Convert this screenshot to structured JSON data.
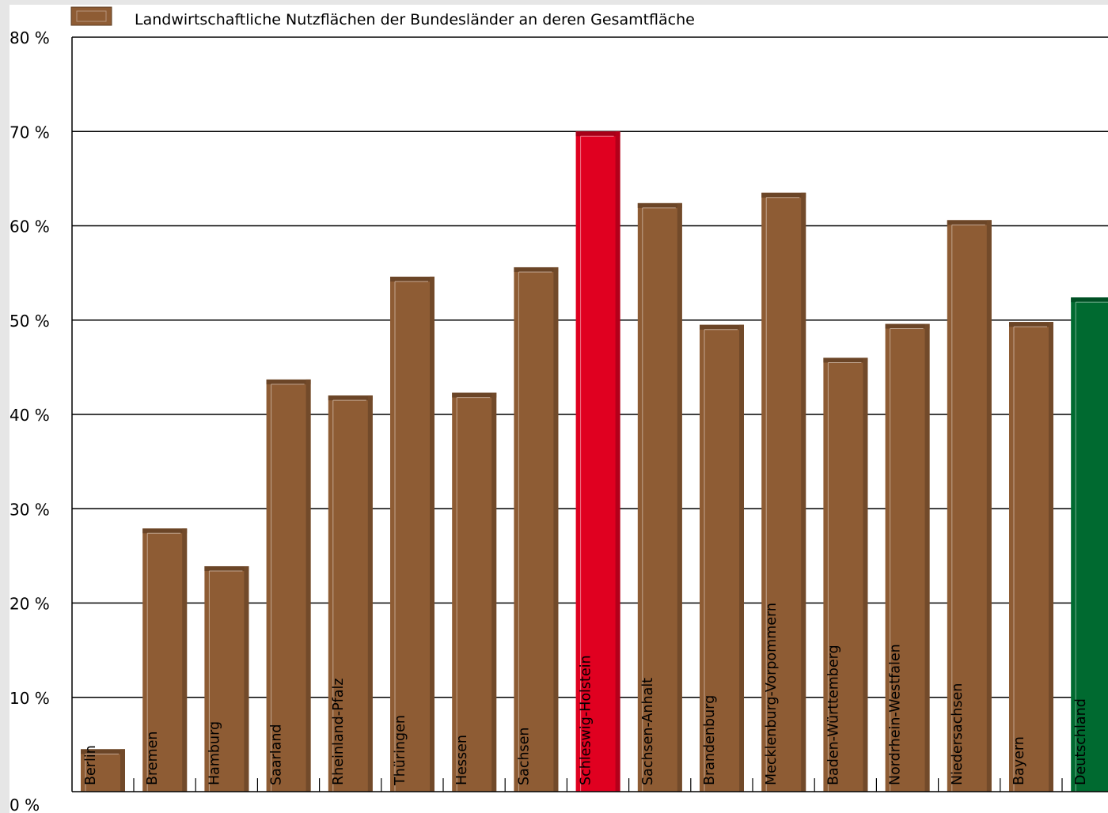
{
  "chart_data": {
    "type": "bar",
    "legend": {
      "label": "Landwirtschaftliche Nutzflächen der Bundesländer an deren Gesamtfläche",
      "position": "top-left"
    },
    "ylim": [
      0,
      80
    ],
    "yticks": [
      "0 %",
      "10 %",
      "20 %",
      "30 %",
      "40 %",
      "50 %",
      "60 %",
      "70 %",
      "80 %"
    ],
    "grid": true,
    "categories": [
      "Berlin",
      "Bremen",
      "Hamburg",
      "Saarland",
      "Rheinland-Pfalz",
      "Thüringen",
      "Hessen",
      "Sachsen",
      "Schleswig-Holstein",
      "Sachsen-Anhalt",
      "Brandenburg",
      "Mecklenburg-Vorpommern",
      "Baden-Württemberg",
      "Nordrhein-Westfalen",
      "Niedersachsen",
      "Bayern",
      "Deutschland"
    ],
    "values": [
      4.5,
      27.9,
      23.9,
      43.7,
      42.0,
      54.6,
      42.3,
      55.6,
      70.0,
      62.4,
      49.5,
      63.5,
      46.0,
      49.6,
      60.6,
      49.8,
      52.4
    ],
    "colors": {
      "default": "#8e5c34",
      "highlight": "#e00020",
      "total": "#006a30",
      "highlight_category": "Schleswig-Holstein",
      "total_category": "Deutschland"
    }
  }
}
